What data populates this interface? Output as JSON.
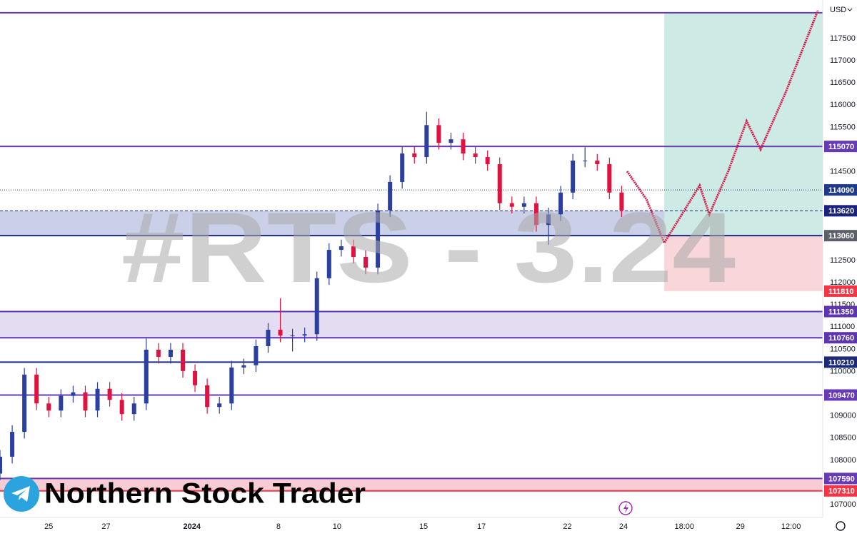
{
  "chart_data": {
    "type": "candlestick",
    "currency": "USD",
    "watermark": "#RTS - 3.24",
    "brand": "Northern Stock Trader",
    "xlim": [
      0,
      135
    ],
    "ylim": [
      106712,
      118368
    ],
    "yticks": [
      117500,
      117000,
      116500,
      116000,
      115500,
      114500,
      112500,
      112000,
      111500,
      111000,
      110500,
      110000,
      109000,
      108500,
      108000,
      107000
    ],
    "xticks": [
      {
        "value": 8.0,
        "label": "25"
      },
      {
        "value": 17.4,
        "label": "27"
      },
      {
        "value": 31.5,
        "label": "2024"
      },
      {
        "value": 45.7,
        "label": "8"
      },
      {
        "value": 55.3,
        "label": "10"
      },
      {
        "value": 69.5,
        "label": "15"
      },
      {
        "value": 79.0,
        "label": "17"
      },
      {
        "value": 93.1,
        "label": "22"
      },
      {
        "value": 102.3,
        "label": "24"
      },
      {
        "value": 112.3,
        "label": "18:00"
      },
      {
        "value": 121.5,
        "label": "29"
      },
      {
        "value": 129.8,
        "label": "12:00"
      }
    ],
    "up_color": "#2a3fa0",
    "down_color": "#e0123f",
    "x": [
      0,
      2,
      4,
      6,
      8,
      10,
      12,
      14,
      16,
      18,
      20,
      22,
      24,
      26,
      28,
      30,
      32,
      34,
      36,
      38,
      40,
      42,
      44,
      46,
      48,
      50,
      52,
      54,
      56,
      58,
      60,
      62,
      64,
      66,
      68,
      70,
      72,
      74,
      76,
      78,
      80,
      82,
      84,
      86,
      88,
      90,
      92,
      94,
      96,
      98,
      100,
      102
    ],
    "open": [
      107700,
      108080,
      108640,
      109930,
      109280,
      109120,
      109450,
      109530,
      109120,
      109610,
      109360,
      109040,
      109280,
      110490,
      110330,
      110490,
      110010,
      109690,
      109200,
      109280,
      110090,
      110140,
      110570,
      110940,
      110810,
      110810,
      110840,
      112100,
      112740,
      112820,
      112580,
      112340,
      113630,
      114270,
      114910,
      114830,
      115550,
      115150,
      115230,
      114910,
      114830,
      114670,
      113790,
      113710,
      113790,
      113300,
      113540,
      114030,
      114750,
      114750,
      114670,
      114030
    ],
    "high": [
      108230,
      108790,
      110080,
      110080,
      109430,
      109600,
      109680,
      109680,
      109760,
      109760,
      109510,
      109430,
      110740,
      110640,
      110640,
      110640,
      110160,
      109840,
      109430,
      110240,
      110290,
      110720,
      111090,
      111650,
      110960,
      110990,
      112250,
      112890,
      112970,
      112970,
      112730,
      113780,
      114420,
      115060,
      115060,
      115850,
      115700,
      115380,
      115380,
      115060,
      114980,
      114820,
      113940,
      113940,
      113940,
      113690,
      114180,
      114900,
      115050,
      114900,
      114820,
      114180
    ],
    "low": [
      107550,
      107930,
      108490,
      109130,
      108970,
      108970,
      109300,
      108970,
      108970,
      109210,
      108890,
      108890,
      109130,
      110180,
      110180,
      109860,
      109540,
      109050,
      109050,
      109130,
      109940,
      109990,
      110420,
      110660,
      110450,
      110660,
      110690,
      111950,
      112590,
      112430,
      112190,
      112190,
      113480,
      114120,
      114680,
      114680,
      115000,
      115000,
      114760,
      114680,
      114520,
      113640,
      113560,
      113560,
      113150,
      112850,
      113390,
      113880,
      114600,
      114520,
      113880,
      113480
    ],
    "close": [
      108080,
      108640,
      109930,
      109280,
      109120,
      109450,
      109530,
      109120,
      109610,
      109360,
      109040,
      109280,
      110490,
      110330,
      110490,
      110010,
      109690,
      109200,
      109280,
      110090,
      110140,
      110570,
      110940,
      110810,
      110810,
      110840,
      112100,
      112740,
      112820,
      112580,
      112340,
      113630,
      114270,
      114910,
      114830,
      115550,
      115150,
      115230,
      114910,
      114830,
      114670,
      113790,
      113710,
      113790,
      113300,
      113540,
      114030,
      114750,
      114750,
      114670,
      114030,
      113630
    ],
    "projection": {
      "color": "#d81b4a",
      "x": [
        102.9,
        106.1,
        109.0,
        111.9,
        114.8,
        116.4,
        119.5,
        122.5,
        124.8,
        128.9,
        134.2
      ],
      "values": [
        114510,
        113870,
        112900,
        113540,
        114190,
        113540,
        114510,
        115640,
        115000,
        116280,
        118130
      ]
    },
    "zones": [
      {
        "from": 113060,
        "to": 113620,
        "color": "#c9d0e8"
      },
      {
        "from": 110760,
        "to": 111350,
        "color": "#e4ddf2"
      },
      {
        "from": 107310,
        "to": 107590,
        "color": "#f8ccd4"
      }
    ],
    "position": {
      "x_start": 109.0,
      "entry": 113060,
      "target": 118080,
      "stop": 111810,
      "target_color": "#cdeae4",
      "stop_color": "#f9d6da"
    },
    "levels": [
      {
        "value": 118080,
        "color": "#673ab7",
        "style": "solid",
        "show_label": false
      },
      {
        "value": 115070,
        "color": "#673ab7",
        "style": "solid",
        "show_label": true
      },
      {
        "value": 114090,
        "color": "#1e3a8a",
        "style": "dotted",
        "show_label": true
      },
      {
        "value": 113620,
        "color": "#1a237e",
        "style": "dashed",
        "show_label": true
      },
      {
        "value": 113060,
        "color": "#1c2a7a",
        "style": "solid",
        "show_label": true,
        "label_color": "#5d606b"
      },
      {
        "value": 111810,
        "color": "#f23645",
        "style": "none",
        "show_label": true
      },
      {
        "value": 111350,
        "color": "#5e35b1",
        "style": "solid",
        "show_label": true
      },
      {
        "value": 110760,
        "color": "#5e35b1",
        "style": "solid",
        "show_label": true
      },
      {
        "value": 110210,
        "color": "#1c2a7a",
        "style": "solid",
        "show_label": true
      },
      {
        "value": 109470,
        "color": "#673ab7",
        "style": "solid",
        "show_label": true
      },
      {
        "value": 107590,
        "color": "#673ab7",
        "style": "solid",
        "show_label": true
      },
      {
        "value": 107310,
        "color": "#f23645",
        "style": "solid",
        "show_label": true
      }
    ]
  }
}
